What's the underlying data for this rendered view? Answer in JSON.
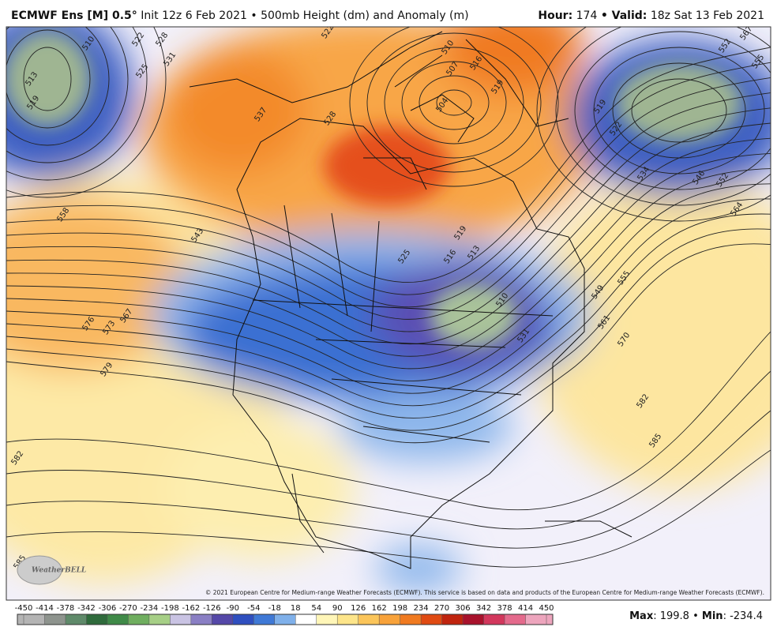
{
  "header": {
    "model": "ECMWF Ens [M] 0.5°",
    "init": "Init 12z 6 Feb 2021",
    "product": "• 500mb Height (dm) and Anomaly (m)",
    "hour_label": "Hour:",
    "hour": "174",
    "valid_label": "• Valid:",
    "valid": "18z Sat 13 Feb 2021"
  },
  "map": {
    "contour_labels": [
      510,
      513,
      519,
      522,
      528,
      525,
      531,
      537,
      528,
      522,
      510,
      507,
      516,
      504,
      519,
      567,
      552,
      555,
      519,
      522,
      534,
      546,
      552,
      564,
      558,
      543,
      519,
      516,
      513,
      525,
      510,
      531,
      549,
      555,
      561,
      570,
      576,
      573,
      567,
      579,
      582,
      585,
      582,
      585
    ],
    "copyright": "© 2021 European Centre for Medium-range Weather Forecasts (ECMWF). This service is based on data and products of the European Centre for Medium-range Weather Forecasts (ECMWF).",
    "logo": "WeatherBELL"
  },
  "colorbar": {
    "ticks": [
      -450,
      -414,
      -378,
      -342,
      -306,
      -270,
      -234,
      -198,
      -162,
      -126,
      -90,
      -54,
      -18,
      18,
      54,
      90,
      126,
      162,
      198,
      234,
      270,
      306,
      342,
      378,
      414,
      450
    ],
    "colors": [
      "#b4b4b4",
      "#8e948e",
      "#5f8a6a",
      "#2f6b3c",
      "#3f8a48",
      "#6fae5f",
      "#a6cf86",
      "#c9c3e3",
      "#8a7fc4",
      "#5548a8",
      "#2f4fbf",
      "#3f79d6",
      "#7fb0ea",
      "#ffffff",
      "#fff6b8",
      "#fde58a",
      "#fbc55a",
      "#f8a23a",
      "#f07a20",
      "#e04a12",
      "#c0240e",
      "#a8122c",
      "#d2375c",
      "#e46a8c",
      "#eda5bd"
    ]
  },
  "stats": {
    "max_label": "Max",
    "max": "199.8",
    "sep": "•",
    "min_label": "Min",
    "min": "-234.4"
  }
}
